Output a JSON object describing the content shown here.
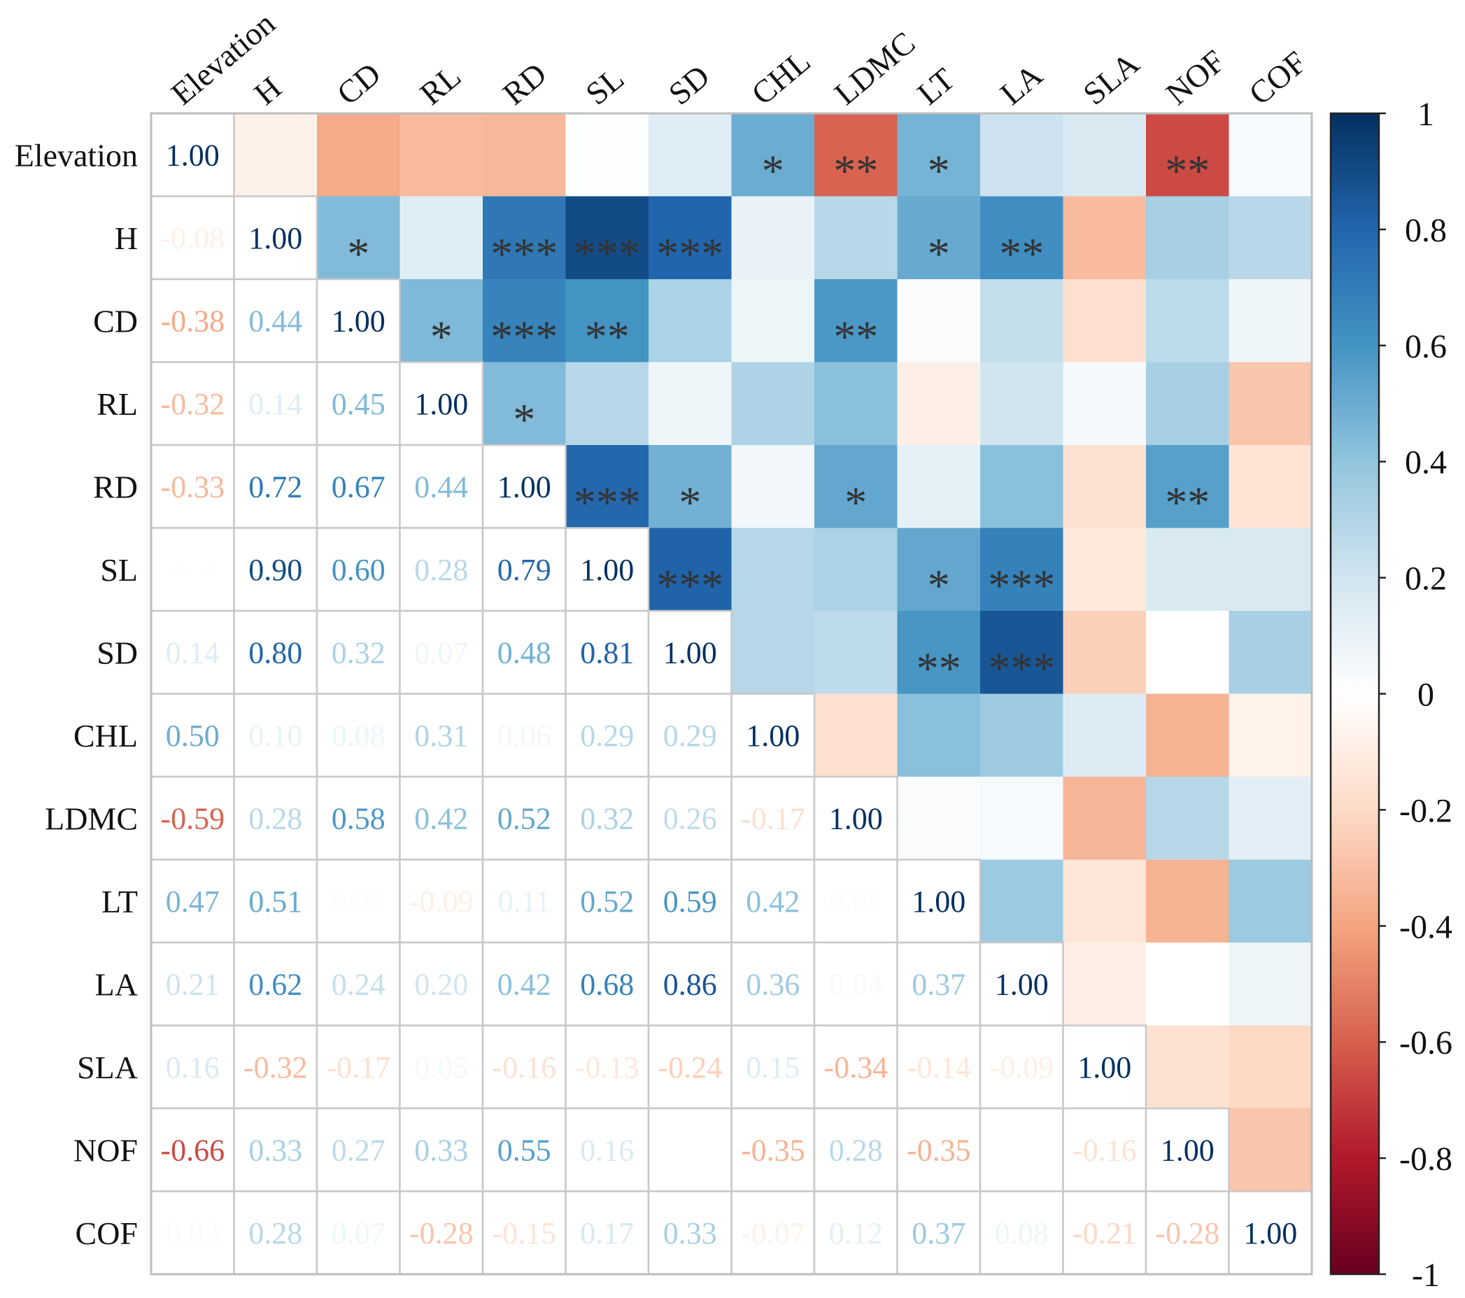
{
  "chart_data": {
    "type": "heatmap",
    "title": "",
    "variables": [
      "Elevation",
      "H",
      "CD",
      "RL",
      "RD",
      "SL",
      "SD",
      "CHL",
      "LDMC",
      "LT",
      "LA",
      "SLA",
      "NOF",
      "COF"
    ],
    "correlations": [
      [
        1.0
      ],
      [
        -0.08,
        1.0
      ],
      [
        -0.38,
        0.44,
        1.0
      ],
      [
        -0.32,
        0.14,
        0.45,
        1.0
      ],
      [
        -0.33,
        0.72,
        0.67,
        0.44,
        1.0
      ],
      [
        0.01,
        0.9,
        0.6,
        0.28,
        0.79,
        1.0
      ],
      [
        0.14,
        0.8,
        0.32,
        0.07,
        0.48,
        0.81,
        1.0
      ],
      [
        0.5,
        0.1,
        0.08,
        0.31,
        0.06,
        0.29,
        0.29,
        1.0
      ],
      [
        -0.59,
        0.28,
        0.58,
        0.42,
        0.52,
        0.32,
        0.26,
        -0.17,
        1.0
      ],
      [
        0.47,
        0.51,
        0.02,
        -0.09,
        0.11,
        0.52,
        0.59,
        0.42,
        0.02,
        1.0
      ],
      [
        0.21,
        0.62,
        0.24,
        0.2,
        0.42,
        0.68,
        0.86,
        0.36,
        0.04,
        0.37,
        1.0
      ],
      [
        0.16,
        -0.32,
        -0.17,
        0.05,
        -0.16,
        -0.13,
        -0.24,
        0.15,
        -0.34,
        -0.14,
        -0.09,
        1.0
      ],
      [
        -0.66,
        0.33,
        0.27,
        0.33,
        0.55,
        0.16,
        null,
        -0.35,
        0.28,
        -0.35,
        null,
        -0.16,
        1.0
      ],
      [
        0.03,
        0.28,
        0.07,
        -0.28,
        -0.15,
        0.17,
        0.33,
        -0.07,
        0.12,
        0.37,
        0.08,
        -0.21,
        -0.28,
        1.0
      ]
    ],
    "significance": {
      "Elevation": {
        "CHL": "*",
        "LDMC": "**",
        "LT": "*",
        "NOF": "**"
      },
      "H": {
        "CD": "*",
        "RD": "***",
        "SL": "***",
        "SD": "***",
        "LT": "*",
        "LA": "**"
      },
      "CD": {
        "RL": "*",
        "RD": "***",
        "SL": "**",
        "LDMC": "**"
      },
      "RL": {
        "RD": "*"
      },
      "RD": {
        "SL": "***",
        "SD": "*",
        "LDMC": "*",
        "NOF": "**"
      },
      "SL": {
        "SD": "***",
        "LT": "*",
        "LA": "***"
      },
      "SD": {
        "LT": "**",
        "LA": "***"
      }
    },
    "colorbar": {
      "min": -1,
      "max": 1,
      "ticks": [
        {
          "value": 1,
          "label": "1"
        },
        {
          "value": 0.8,
          "label": "0.8"
        },
        {
          "value": 0.6,
          "label": "0.6"
        },
        {
          "value": 0.4,
          "label": "0.4"
        },
        {
          "value": 0.2,
          "label": "0.2"
        },
        {
          "value": 0,
          "label": "0"
        },
        {
          "value": -0.2,
          "label": "-0.2"
        },
        {
          "value": -0.4,
          "label": "-0.4"
        },
        {
          "value": -0.6,
          "label": "-0.6"
        },
        {
          "value": -0.8,
          "label": "-0.8"
        },
        {
          "value": -1,
          "label": "-1"
        }
      ]
    },
    "colormap": {
      "colors": [
        "#67001f",
        "#b2182b",
        "#d6604d",
        "#f4a582",
        "#fddbc7",
        "#ffffff",
        "#d1e5f0",
        "#92c5de",
        "#4393c3",
        "#2166ac",
        "#053061"
      ]
    }
  }
}
